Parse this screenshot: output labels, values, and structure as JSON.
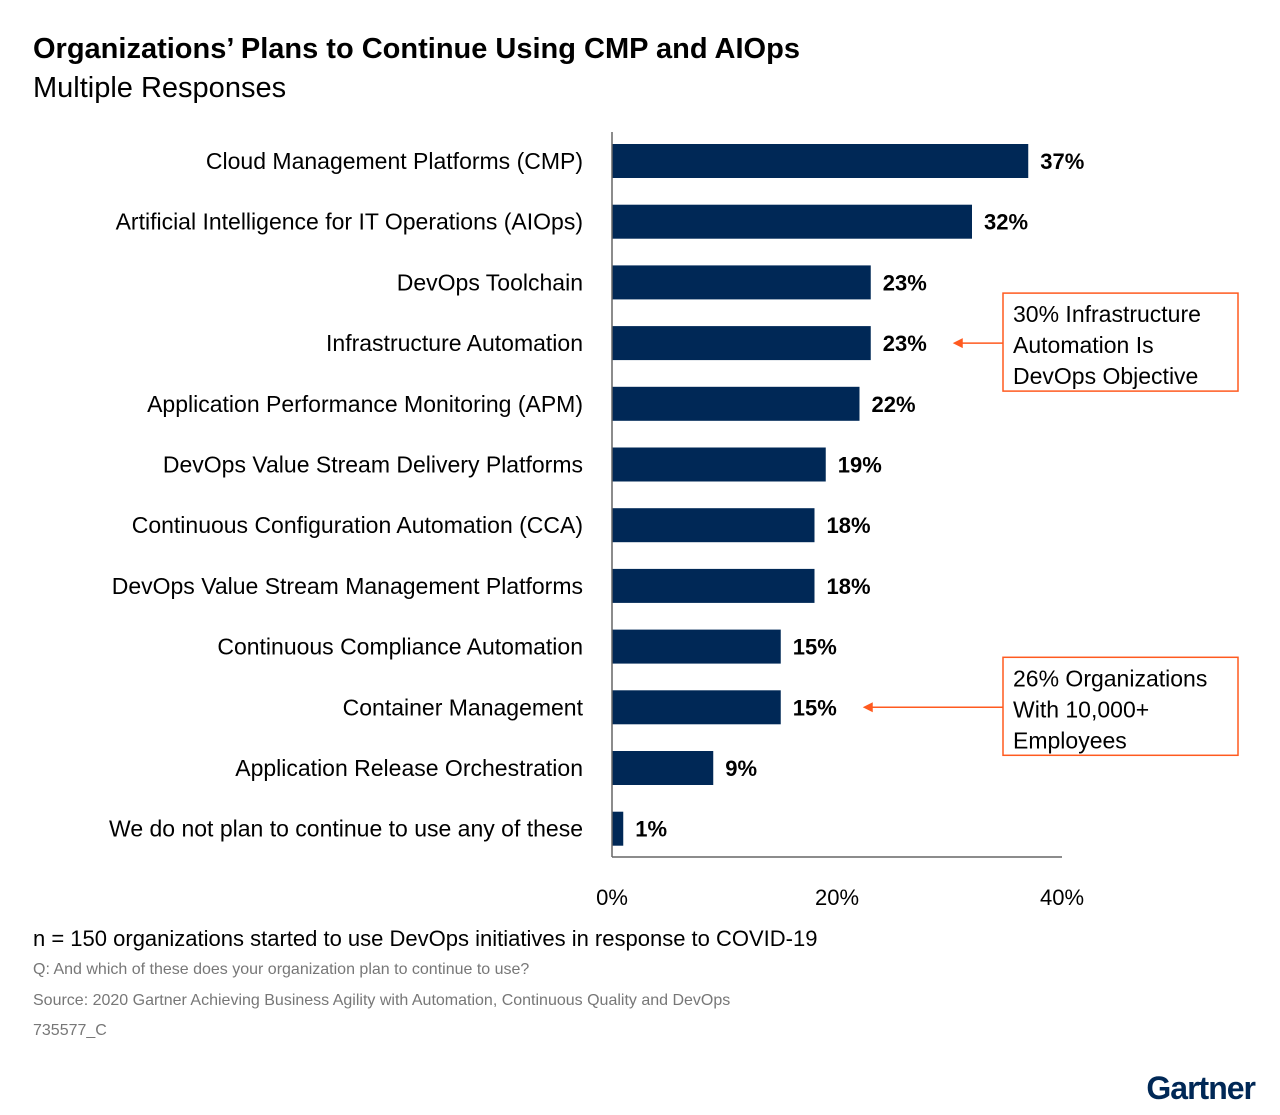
{
  "chart_data": {
    "type": "bar",
    "orientation": "horizontal",
    "title": "Organizations’ Plans to Continue Using CMP and AIOps",
    "subtitle": "Multiple Responses",
    "categories": [
      "Cloud Management Platforms (CMP)",
      "Artificial Intelligence for IT Operations (AIOps)",
      "DevOps Toolchain",
      "Infrastructure Automation",
      "Application Performance Monitoring (APM)",
      "DevOps Value Stream Delivery Platforms",
      "Continuous Configuration Automation (CCA)",
      "DevOps Value Stream Management Platforms",
      "Continuous Compliance Automation",
      "Container Management",
      "Application Release Orchestration",
      "We do not plan to continue to use any of these"
    ],
    "values": [
      37,
      32,
      23,
      23,
      22,
      19,
      18,
      18,
      15,
      15,
      9,
      1
    ],
    "value_labels": [
      "37%",
      "32%",
      "23%",
      "23%",
      "22%",
      "19%",
      "18%",
      "18%",
      "15%",
      "15%",
      "9%",
      "1%"
    ],
    "xlim": [
      0,
      40
    ],
    "xticks": [
      0,
      20,
      40
    ],
    "xtick_labels": [
      "0%",
      "20%",
      "40%"
    ],
    "xlabel": "",
    "ylabel": "",
    "grid": false,
    "bar_color": "#002856",
    "annotation_color": "#FF5A1F",
    "annotations": [
      {
        "target_index": 3,
        "lines": [
          "30% Infrastructure",
          "Automation Is",
          "DevOps Objective"
        ]
      },
      {
        "target_index": 9,
        "lines": [
          "26% Organizations",
          "With 10,000+",
          "Employees"
        ]
      }
    ]
  },
  "footer": {
    "n_note": "n = 150 organizations started to use DevOps initiatives in response to COVID-19",
    "question": "Q: And which of these does your organization plan to continue to use?",
    "source": "Source: 2020 Gartner Achieving Business Agility with Automation, Continuous Quality and DevOps",
    "id": "735577_C"
  },
  "logo": {
    "text": "Gartner",
    "color": "#002856"
  }
}
